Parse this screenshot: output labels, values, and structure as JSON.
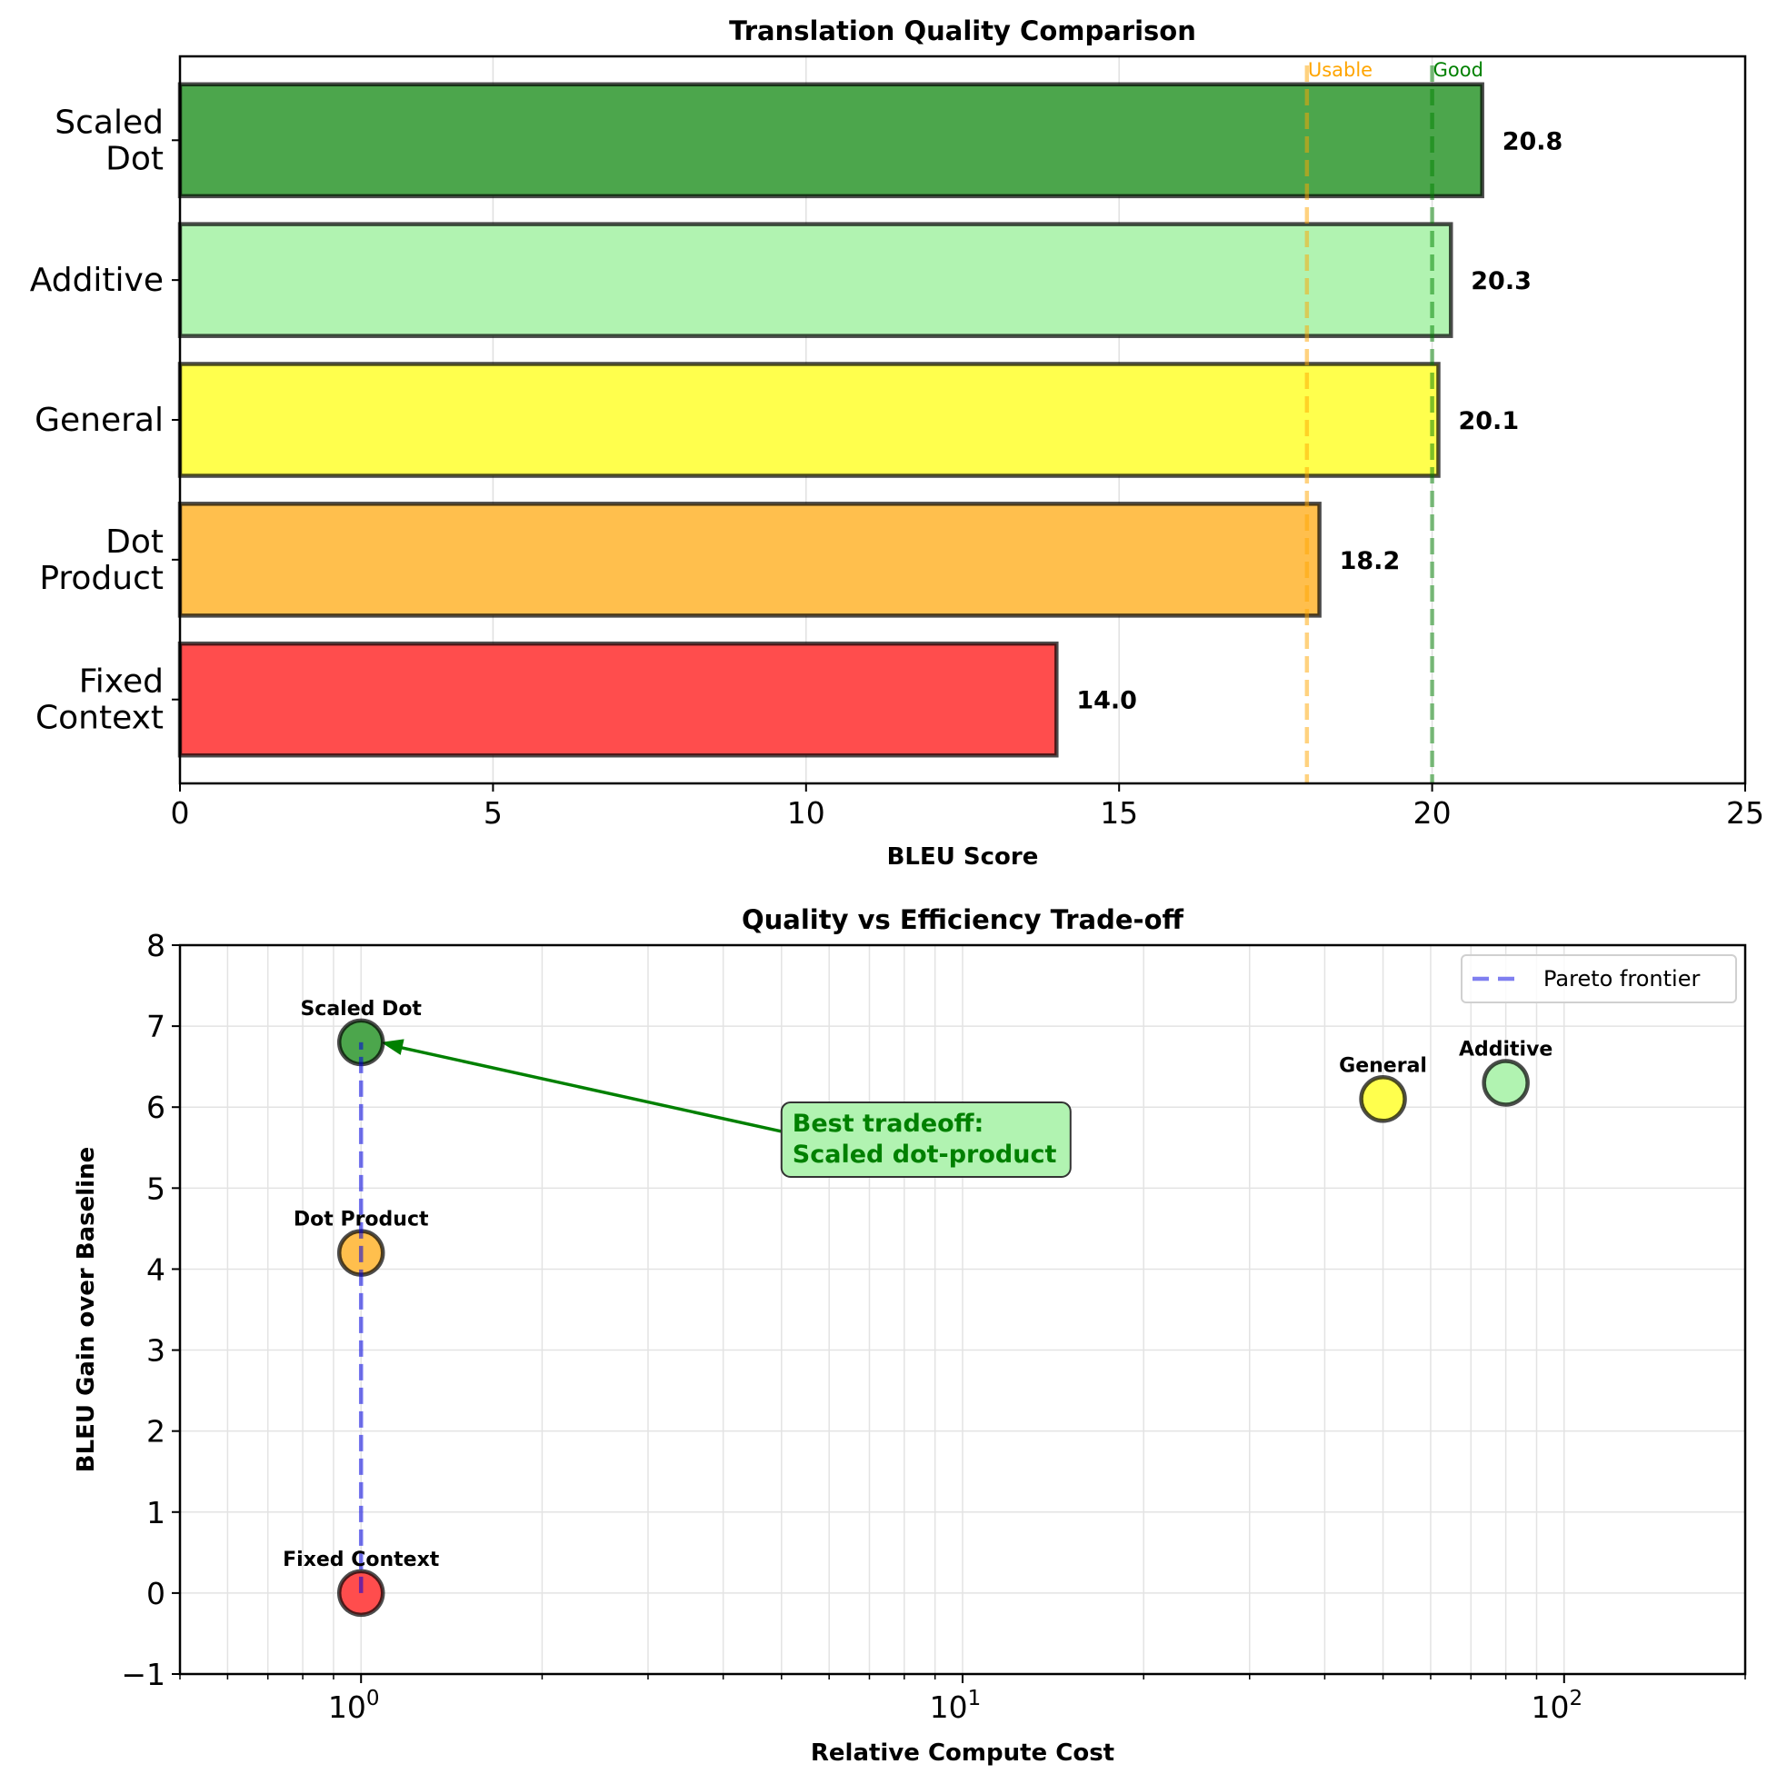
{
  "chart_data": [
    {
      "type": "bar",
      "orientation": "horizontal",
      "title": "Translation Quality Comparison",
      "xlabel": "BLEU Score",
      "ylabel": "",
      "xlim": [
        0,
        25
      ],
      "xticks": [
        0,
        5,
        10,
        15,
        20,
        25
      ],
      "grid": true,
      "categories": [
        "Fixed\nContext",
        "Dot\nProduct",
        "General",
        "Additive",
        "Scaled\nDot"
      ],
      "values": [
        14.0,
        18.2,
        20.1,
        20.3,
        20.8
      ],
      "value_labels": [
        "14.0",
        "18.2",
        "20.1",
        "20.3",
        "20.8"
      ],
      "colors": [
        "#ff4d4d",
        "#ffbf4d",
        "#ffff4d",
        "#b1f3b1",
        "#4ca64c"
      ],
      "reference_lines": [
        {
          "label": "Usable",
          "value": 18,
          "color": "#ffa500"
        },
        {
          "label": "Good",
          "value": 20,
          "color": "#008000"
        }
      ]
    },
    {
      "type": "scatter",
      "title": "Quality vs Efficiency Trade-off",
      "xlabel": "Relative Compute Cost",
      "ylabel": "BLEU Gain over Baseline",
      "xscale": "log",
      "xlim": [
        0.5,
        200
      ],
      "ylim": [
        -1,
        8
      ],
      "xticks": [
        1,
        10,
        100
      ],
      "xtick_labels": [
        [
          "10",
          "0"
        ],
        [
          "10",
          "1"
        ],
        [
          "10",
          "2"
        ]
      ],
      "yticks": [
        -1,
        0,
        1,
        2,
        3,
        4,
        5,
        6,
        7,
        8
      ],
      "ytick_labels": [
        "−1",
        "0",
        "1",
        "2",
        "3",
        "4",
        "5",
        "6",
        "7",
        "8"
      ],
      "grid": true,
      "points": [
        {
          "name": "Fixed Context",
          "x": 1,
          "y": 0.0,
          "color": "#ff4d4d"
        },
        {
          "name": "Dot Product",
          "x": 1,
          "y": 4.2,
          "color": "#ffbf4d"
        },
        {
          "name": "General",
          "x": 50,
          "y": 6.1,
          "color": "#ffff4d"
        },
        {
          "name": "Additive",
          "x": 80,
          "y": 6.3,
          "color": "#b1f3b1"
        },
        {
          "name": "Scaled Dot",
          "x": 1,
          "y": 6.8,
          "color": "#4ca64c"
        }
      ],
      "pareto_frontier": {
        "label": "Pareto frontier",
        "x": [
          1,
          1
        ],
        "y": [
          0,
          6.8
        ],
        "color": "#7f7ff0"
      },
      "legend": {
        "position": "top-right",
        "entries": [
          "Pareto frontier"
        ]
      },
      "annotation": {
        "lines": [
          "Best tradeoff:",
          "Scaled dot-product"
        ],
        "target": {
          "x": 1,
          "y": 6.8
        },
        "text_at": {
          "x": 5,
          "y": 5.7
        },
        "color": "#008000",
        "box_color": "#b1f3b1"
      }
    }
  ]
}
